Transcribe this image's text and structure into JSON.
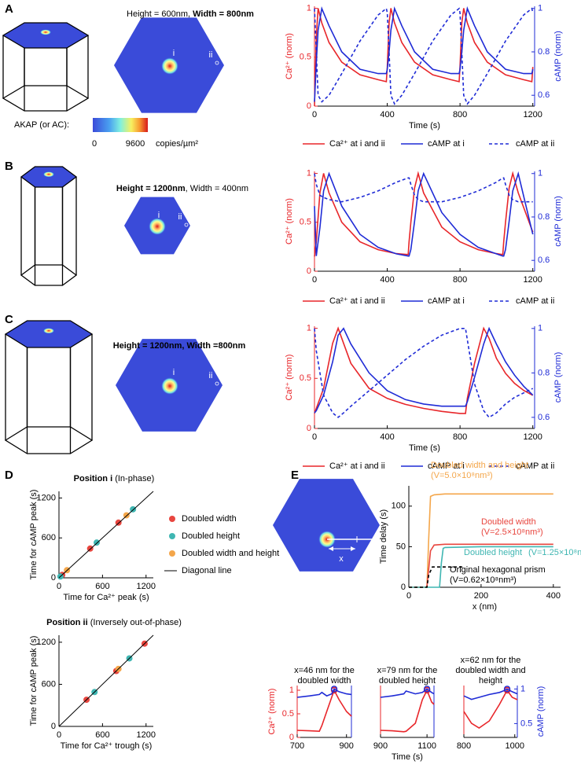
{
  "figure": {
    "panel_labels": [
      "A",
      "B",
      "C",
      "D",
      "E"
    ],
    "A": {
      "heading": [
        {
          "text": "Height = 600nm, ",
          "bold": false
        },
        {
          "text": "Width = 800nm",
          "bold": true
        }
      ],
      "point_labels": [
        "i",
        "ii"
      ],
      "colorbar": {
        "title": "AKAP (or AC):",
        "min": 0,
        "max": 9600,
        "unit": "copies/µm²"
      }
    },
    "B": {
      "heading": [
        {
          "text": "Height = 1200nm",
          "bold": true
        },
        {
          "text": ", Width = 400nm",
          "bold": false
        }
      ],
      "point_labels": [
        "i",
        "ii"
      ]
    },
    "C": {
      "heading": [
        {
          "text": "Height = 1200nm, Width =800nm",
          "bold": true
        }
      ],
      "point_labels": [
        "i",
        "ii"
      ]
    },
    "E": {
      "x_label": "x"
    }
  },
  "chart_data": [
    {
      "type": "line",
      "x": [
        0,
        10,
        20,
        40,
        80,
        150,
        250,
        350,
        395,
        400,
        410,
        420,
        440,
        480,
        550,
        650,
        750,
        795,
        800,
        810,
        820,
        840,
        880,
        950,
        1050,
        1150,
        1195,
        1200
      ],
      "xlim": [
        0,
        1210
      ],
      "xticks": [
        0,
        400,
        800,
        1200
      ],
      "ylim": [
        0,
        1.02
      ],
      "yticks": [
        0,
        0.5,
        1
      ],
      "y2lim": [
        0.55,
        1.01
      ],
      "y2ticks": [
        0.6,
        0.8,
        1
      ],
      "xlabel": "Time (s)",
      "ylabel": "Ca²⁺ (norm)",
      "y2label": "cAMP (norm)",
      "ycolor": "#e8262a",
      "y2color": "#1f2bd6",
      "legend": "below",
      "series": [
        {
          "name": "Ca²⁺ at i and ii",
          "color": "#e8262a",
          "values": [
            0,
            0.7,
            1,
            0.85,
            0.65,
            0.45,
            0.32,
            0.27,
            0.25,
            0.4,
            0.85,
            1,
            0.85,
            0.65,
            0.45,
            0.32,
            0.27,
            0.25,
            0.4,
            0.85,
            1,
            0.85,
            0.65,
            0.45,
            0.32,
            0.27,
            0.25,
            0.4
          ]
        },
        {
          "name": "cAMP at i",
          "color": "#1f2bd6",
          "axis": "y2",
          "values": [
            0.57,
            0.75,
            0.9,
            1,
            0.92,
            0.8,
            0.72,
            0.7,
            0.7,
            0.72,
            0.8,
            0.9,
            1,
            0.92,
            0.8,
            0.72,
            0.7,
            0.7,
            0.72,
            0.8,
            0.9,
            1,
            0.92,
            0.8,
            0.72,
            0.7,
            0.7,
            0.72
          ]
        },
        {
          "name": "cAMP at ii",
          "color": "#1f2bd6",
          "axis": "y2",
          "dash": true,
          "values": [
            1,
            0.8,
            0.6,
            0.57,
            0.6,
            0.7,
            0.85,
            0.97,
            1,
            0.98,
            0.8,
            0.6,
            0.56,
            0.6,
            0.7,
            0.85,
            0.97,
            1,
            0.98,
            0.8,
            0.6,
            0.56,
            0.6,
            0.7,
            0.85,
            0.97,
            1,
            0.98
          ]
        }
      ]
    },
    {
      "type": "line",
      "x": [
        0,
        10,
        30,
        50,
        80,
        150,
        250,
        350,
        450,
        515,
        520,
        530,
        550,
        570,
        600,
        700,
        800,
        900,
        1000,
        1035,
        1040,
        1050,
        1070,
        1090,
        1120,
        1200
      ],
      "xlim": [
        0,
        1210
      ],
      "xticks": [
        0,
        400,
        800,
        1200
      ],
      "ylim": [
        0,
        1.02
      ],
      "yticks": [
        0,
        0.5,
        1
      ],
      "y2lim": [
        0.55,
        1.01
      ],
      "y2ticks": [
        0.6,
        0.8,
        1
      ],
      "ylabel": "Ca²⁺ (norm)",
      "y2label": "cAMP (norm)",
      "ycolor": "#e8262a",
      "y2color": "#1f2bd6",
      "legend": "below",
      "series": [
        {
          "name": "Ca²⁺ at i and ii",
          "color": "#e8262a",
          "values": [
            0.15,
            0.3,
            0.8,
            1,
            0.8,
            0.5,
            0.3,
            0.22,
            0.18,
            0.17,
            0.3,
            0.5,
            0.85,
            1,
            0.8,
            0.45,
            0.3,
            0.22,
            0.18,
            0.17,
            0.3,
            0.5,
            0.85,
            1,
            0.8,
            0.4
          ]
        },
        {
          "name": "cAMP at i",
          "color": "#1f2bd6",
          "axis": "y2",
          "values": [
            0.85,
            0.62,
            0.75,
            0.92,
            1,
            0.85,
            0.72,
            0.66,
            0.63,
            0.62,
            0.62,
            0.65,
            0.78,
            0.92,
            1,
            0.82,
            0.72,
            0.66,
            0.63,
            0.62,
            0.62,
            0.65,
            0.78,
            0.92,
            1,
            0.72
          ]
        },
        {
          "name": "cAMP at ii",
          "color": "#1f2bd6",
          "axis": "y2",
          "dash": true,
          "values": [
            1,
            0.95,
            0.9,
            0.89,
            0.88,
            0.87,
            0.89,
            0.92,
            0.96,
            0.98,
            0.98,
            0.95,
            0.9,
            0.88,
            0.87,
            0.87,
            0.89,
            0.92,
            0.96,
            0.98,
            0.98,
            0.95,
            0.9,
            0.88,
            0.87,
            0.87
          ]
        }
      ]
    },
    {
      "type": "line",
      "x": [
        0,
        10,
        50,
        100,
        130,
        160,
        200,
        300,
        400,
        500,
        600,
        700,
        800,
        830,
        840,
        880,
        930,
        960,
        1000,
        1050,
        1100,
        1150,
        1200
      ],
      "xlim": [
        0,
        1210
      ],
      "xticks": [
        0,
        400,
        800,
        1200
      ],
      "ylim": [
        0,
        1.02
      ],
      "yticks": [
        0,
        0.5,
        1
      ],
      "y2lim": [
        0.55,
        1.01
      ],
      "y2ticks": [
        0.6,
        0.8,
        1
      ],
      "xlabel": "Time (s)",
      "ylabel": "Ca²⁺ (norm)",
      "y2label": "cAMP (norm)",
      "ycolor": "#e8262a",
      "y2color": "#1f2bd6",
      "legend": "below",
      "series": [
        {
          "name": "Ca²⁺ at i and ii",
          "color": "#e8262a",
          "values": [
            0.15,
            0.2,
            0.4,
            0.85,
            1,
            0.85,
            0.65,
            0.4,
            0.3,
            0.24,
            0.2,
            0.17,
            0.15,
            0.15,
            0.3,
            0.65,
            1,
            0.9,
            0.7,
            0.55,
            0.45,
            0.38,
            0.33
          ]
        },
        {
          "name": "cAMP at i",
          "color": "#1f2bd6",
          "axis": "y2",
          "values": [
            0.62,
            0.63,
            0.7,
            0.85,
            0.97,
            1,
            0.93,
            0.8,
            0.72,
            0.68,
            0.66,
            0.65,
            0.65,
            0.65,
            0.67,
            0.78,
            0.93,
            1,
            0.93,
            0.85,
            0.79,
            0.74,
            0.7
          ]
        },
        {
          "name": "cAMP at ii",
          "color": "#1f2bd6",
          "axis": "y2",
          "dash": true,
          "values": [
            1,
            0.9,
            0.7,
            0.62,
            0.6,
            0.62,
            0.65,
            0.72,
            0.79,
            0.86,
            0.92,
            0.97,
            1,
            1,
            0.95,
            0.75,
            0.63,
            0.6,
            0.62,
            0.66,
            0.69,
            0.71,
            0.73
          ]
        }
      ]
    },
    {
      "type": "scatter",
      "title": [
        {
          "text": "Position i",
          "bold": true
        },
        {
          "text": " (In-phase)",
          "bold": false
        }
      ],
      "xlim": [
        0,
        1300
      ],
      "xticks": [
        0,
        600,
        1200
      ],
      "ylim": [
        0,
        1300
      ],
      "yticks": [
        0,
        600,
        1200
      ],
      "xlabel": "Time for Ca²⁺ peak (s)",
      "ylabel": "Time for cAMP peak (s)",
      "legend": "right",
      "series": [
        {
          "name": "Doubled width",
          "color": "#e8463f",
          "marker": "dot",
          "x": [
            45,
            430,
            820
          ],
          "values": [
            45,
            440,
            830
          ]
        },
        {
          "name": "Doubled height",
          "color": "#3fb6b2",
          "marker": "dot",
          "x": [
            20,
            520,
            1020
          ],
          "values": [
            20,
            530,
            1030
          ]
        },
        {
          "name": "Doubled width and height",
          "color": "#f4a64a",
          "marker": "dot",
          "x": [
            110,
            930
          ],
          "values": [
            115,
            940
          ]
        },
        {
          "name": "Diagonal line",
          "color": "#000000",
          "marker": "line",
          "x": [
            0,
            1300
          ],
          "values": [
            0,
            1300
          ]
        }
      ]
    },
    {
      "type": "scatter",
      "title": [
        {
          "text": "Position ii",
          "bold": true
        },
        {
          "text": " (Inversely out-of-phase)",
          "bold": false
        }
      ],
      "xlim": [
        0,
        1300
      ],
      "xticks": [
        0,
        600,
        1200
      ],
      "ylim": [
        0,
        1300
      ],
      "yticks": [
        0,
        600,
        1200
      ],
      "xlabel": "Time for Ca²⁺ trough (s)",
      "ylabel": "Time for cAMP peak (s)",
      "series": [
        {
          "color": "#e8463f",
          "marker": "dot",
          "x": [
            380,
            790,
            1180
          ],
          "values": [
            380,
            790,
            1180
          ]
        },
        {
          "color": "#3fb6b2",
          "marker": "dot",
          "x": [
            490,
            970
          ],
          "values": [
            490,
            970
          ]
        },
        {
          "color": "#f4a64a",
          "marker": "dot",
          "x": [
            820
          ],
          "values": [
            820
          ]
        },
        {
          "color": "#000000",
          "marker": "line",
          "x": [
            0,
            1300
          ],
          "values": [
            0,
            1300
          ]
        }
      ]
    },
    {
      "type": "line",
      "xlim": [
        0,
        420
      ],
      "xticks": [
        0,
        200,
        400
      ],
      "ylim": [
        0,
        125
      ],
      "yticks": [
        0,
        50,
        100
      ],
      "xlabel": "x (nm)",
      "ylabel": "Time delay (s)",
      "annotations": [
        {
          "text": "Doubled width and height",
          "color": "#f4a64a",
          "small": false
        },
        {
          "text": "(V=5.0×10⁸nm³)",
          "color": "#f4a64a",
          "small": true
        },
        {
          "text": "Doubled width",
          "color": "#e8463f",
          "small": false
        },
        {
          "text": "(V=2.5×10⁸nm³)",
          "color": "#e8463f",
          "small": true
        },
        {
          "text": "Doubled height",
          "color": "#3fb6b2",
          "small": false
        },
        {
          "text": "(V=1.25×10⁸nm³)",
          "color": "#3fb6b2",
          "small": true
        },
        {
          "text": "Original hexagonal prism",
          "color": "#000000",
          "small": false
        },
        {
          "text": "(V=0.62×10⁸nm³)",
          "color": "#000000",
          "small": true
        }
      ],
      "series": [
        {
          "color": "#f4a64a",
          "x": [
            0,
            50,
            55,
            60,
            70,
            100,
            400
          ],
          "values": [
            0,
            0,
            60,
            112,
            114,
            115,
            115
          ]
        },
        {
          "color": "#e8463f",
          "x": [
            0,
            50,
            60,
            70,
            100,
            400
          ],
          "values": [
            0,
            0,
            45,
            52,
            53,
            53
          ]
        },
        {
          "color": "#3fb6b2",
          "x": [
            0,
            85,
            90,
            95,
            100,
            200,
            400
          ],
          "values": [
            0,
            0,
            30,
            48,
            49,
            50,
            50
          ]
        },
        {
          "color": "#000000",
          "dash": true,
          "x": [
            0,
            50,
            55,
            65,
            150
          ],
          "values": [
            0,
            0,
            15,
            25,
            25
          ]
        }
      ]
    },
    {
      "type": "line",
      "title": [
        "x=46 nm for the",
        "doubled width"
      ],
      "x": [
        700,
        750,
        790,
        800,
        820,
        840,
        850,
        870,
        900,
        920
      ],
      "xlim": [
        700,
        920
      ],
      "xticks": [
        700,
        900
      ],
      "ylim": [
        0,
        1.1
      ],
      "yticks": [
        0,
        0.5,
        1
      ],
      "y2lim": [
        0.3,
        1.05
      ],
      "ylabel": "Ca²⁺ (norm)",
      "ycolor": "#e8262a",
      "y2color": "#1f2bd6",
      "peak_markers": true,
      "series": [
        {
          "color": "#e8262a",
          "values": [
            0.15,
            0.14,
            0.13,
            0.25,
            0.55,
            0.85,
            1,
            0.8,
            0.55,
            0.45
          ]
        },
        {
          "color": "#1f2bd6",
          "axis": "y2",
          "values": [
            0.88,
            0.9,
            0.92,
            0.95,
            0.9,
            0.93,
            1,
            0.96,
            0.93,
            0.92
          ]
        }
      ]
    },
    {
      "type": "line",
      "title": [
        "x=79 nm for the",
        "doubled height"
      ],
      "x": [
        900,
        950,
        1000,
        1010,
        1050,
        1080,
        1100,
        1120,
        1130
      ],
      "xlim": [
        900,
        1130
      ],
      "xticks": [
        900,
        1100
      ],
      "ylim": [
        0,
        1.1
      ],
      "y2lim": [
        0.3,
        1.05
      ],
      "xlabel": "Time (s)",
      "ycolor": "#e8262a",
      "y2color": "#1f2bd6",
      "peak_markers": true,
      "series": [
        {
          "color": "#e8262a",
          "values": [
            0.15,
            0.14,
            0.12,
            0.13,
            0.3,
            0.8,
            1,
            0.75,
            0.7
          ]
        },
        {
          "color": "#1f2bd6",
          "axis": "y2",
          "values": [
            0.88,
            0.9,
            0.93,
            0.97,
            0.93,
            0.95,
            1,
            0.95,
            0.93
          ]
        }
      ]
    },
    {
      "type": "line",
      "title": [
        "x=62 nm for the",
        "doubled width and",
        "height"
      ],
      "x": [
        800,
        830,
        860,
        900,
        940,
        960,
        970,
        990,
        1010
      ],
      "xlim": [
        800,
        1010
      ],
      "xticks": [
        800,
        1000
      ],
      "ylim": [
        0,
        1.1
      ],
      "y2lim": [
        0.3,
        1.05
      ],
      "y2ticks": [
        0.5,
        1
      ],
      "y2label": "cAMP (norm)",
      "ycolor": "#e8262a",
      "y2color": "#1f2bd6",
      "peak_markers": true,
      "series": [
        {
          "color": "#e8262a",
          "values": [
            0.55,
            0.3,
            0.2,
            0.35,
            0.7,
            0.9,
            1,
            0.85,
            0.8
          ]
        },
        {
          "color": "#1f2bd6",
          "axis": "y2",
          "values": [
            0.9,
            0.85,
            0.88,
            0.92,
            0.95,
            0.98,
            1,
            0.96,
            0.93
          ]
        }
      ]
    }
  ]
}
